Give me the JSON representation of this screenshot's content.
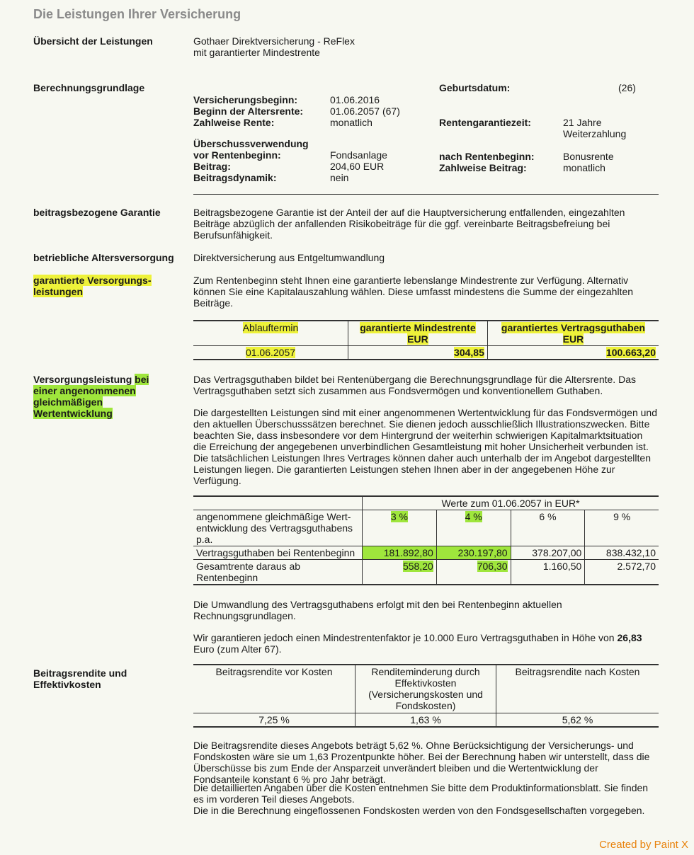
{
  "title": "Die Leistungen Ihrer Versicherung",
  "overview": {
    "label": "Übersicht der Leistungen",
    "line1": "Gothaer Direktversicherung - ReFlex",
    "line2": "mit garantierter Mindestrente"
  },
  "basis": {
    "label": "Berechnungsgrundlage",
    "left": [
      [
        "Versicherungsbeginn:",
        "01.06.2016"
      ],
      [
        "Beginn der Altersrente:",
        "01.06.2057 (67)"
      ],
      [
        "Zahlweise Rente:",
        "monatlich"
      ]
    ],
    "surplus_head": "Überschussverwendung",
    "left2": [
      [
        "vor Rentenbeginn:",
        "Fondsanlage"
      ],
      [
        "Beitrag:",
        "204,60 EUR"
      ],
      [
        "Beitragsdynamik:",
        "nein"
      ]
    ],
    "birth_label": "Geburtsdatum:",
    "birth_value": "(26)",
    "guarantee_label": "Rentengarantiezeit:",
    "guarantee_value1": "21 Jahre",
    "guarantee_value2": "Weiterzahlung",
    "after_label": "nach Rentenbeginn:",
    "after_value": "Bonusrente",
    "pay_label": "Zahlweise Beitrag:",
    "pay_value": "monatlich"
  },
  "contrib_guarantee": {
    "label": "beitragsbezogene Garantie",
    "text": "Beitragsbezogene Garantie ist der Anteil der auf die Hauptversicherung entfallenden, eingezahlten Beiträge abzüglich der anfallenden Risikobeiträge für die ggf. vereinbarte Beitragsbefreiung bei Berufsunfähigkeit."
  },
  "bav": {
    "label": "betriebliche Altersversorgung",
    "text": "Direktversicherung aus Entgeltumwandlung"
  },
  "guaranteed": {
    "label1": "garantierte Versorgungs-",
    "label2": "leistungen",
    "text": "Zum Rentenbeginn steht Ihnen eine garantierte lebenslange Mindestrente zur Verfügung. Alternativ können Sie eine Kapitalauszahlung wählen. Diese umfasst mindestens die Summe der eingezahlten Beiträge.",
    "table": {
      "h1": "Ablauftermin",
      "h2a": "garantierte Mindestrente",
      "h2b": "EUR",
      "h3a": "garantiertes Vertragsguthaben",
      "h3b": "EUR",
      "v1": "01.06.2057",
      "v2": "304,85",
      "v3": "100.663,20"
    }
  },
  "projection": {
    "label1": "Versorgungsleistung",
    "label1b": "bei",
    "label2": "einer angenommenen",
    "label3": "gleichmäßigen",
    "label4": "Wertentwicklung",
    "p1": "Das Vertragsguthaben bildet bei Rentenübergang die Berechnungsgrundlage für die Altersrente. Das Vertragsguthaben setzt sich zusammen aus Fondsvermögen und konventionellem Guthaben.",
    "p2": "Die dargestellten Leistungen sind mit einer angenommenen Wertentwicklung für das Fondsvermögen und den aktuellen Überschusssätzen berechnet. Sie dienen jedoch ausschließlich Illustrationszwecken. Bitte beachten Sie, dass insbesondere vor dem Hintergrund der weiterhin schwierigen Kapitalmarktsituation die Erreichung der angegebenen unverbindlichen Gesamtleistung mit hoher Unsicherheit verbunden ist. Die tatsächlichen Leistungen Ihres Vertrages können daher auch unterhalb der im Angebot dargestellten Leistungen liegen. Die garantierten Leistungen stehen Ihnen aber in der angegebenen Höhe zur Verfügung.",
    "table": {
      "header": "Werte zum 01.06.2057 in EUR*",
      "rows": [
        {
          "label": "angenommene gleichmäßige Wert-entwicklung des  Vertragsguthabens p.a.",
          "values": [
            "3 %",
            "4 %",
            "6 %",
            "9 %"
          ]
        },
        {
          "label": "Vertragsguthaben bei Rentenbeginn",
          "values": [
            "181.892,80",
            "230.197,80",
            "378.207,00",
            "838.432,10"
          ]
        },
        {
          "label": "Gesamtrente daraus ab Rentenbeginn",
          "values": [
            "558,20",
            "706,30",
            "1.160,50",
            "2.572,70"
          ]
        }
      ]
    },
    "p3": "Die Umwandlung des Vertragsguthabens erfolgt mit den bei Rentenbeginn aktuellen Rechnungsgrundlagen.",
    "p4a": "Wir garantieren jedoch einen Mindestrentenfaktor je 10.000 Euro Vertragsguthaben in Höhe von",
    "p4b": "26,83",
    "p4c": " Euro (zum Alter 67)."
  },
  "yield": {
    "label1": "Beitragsrendite und",
    "label2": "Effektivkosten",
    "headers": [
      "Beitragsrendite vor Kosten",
      "Renditeminderung durch Effektivkosten (Versicherungskosten und Fondskosten)",
      "Beitragsrendite nach Kosten"
    ],
    "values": [
      "7,25 %",
      "1,63 %",
      "5,62 %"
    ],
    "p1": "Die Beitragsrendite dieses Angebots beträgt 5,62 %. Ohne Berücksichtigung der Versicherungs- und Fondskosten wäre sie um 1,63 Prozentpunkte höher. Bei der Berechnung haben wir unterstellt, dass die Überschüsse bis zum Ende der Ansparzeit unverändert bleiben und die Wertentwicklung der Fondsanteile konstant 6 % pro Jahr beträgt.",
    "p2": "Die detaillierten Angaben über die Kosten entnehmen Sie bitte dem Produktinformationsblatt. Sie finden es im vorderen Teil dieses Angebots.",
    "p3": "Die in die Berechnung eingeflossenen Fondskosten werden von den Fondsgesellschaften vorgegeben."
  },
  "credit": "Created by Paint X",
  "colors": {
    "yellow_highlight": "#eef23a",
    "green_highlight": "#9fe63c",
    "credit": "#e8820c"
  }
}
